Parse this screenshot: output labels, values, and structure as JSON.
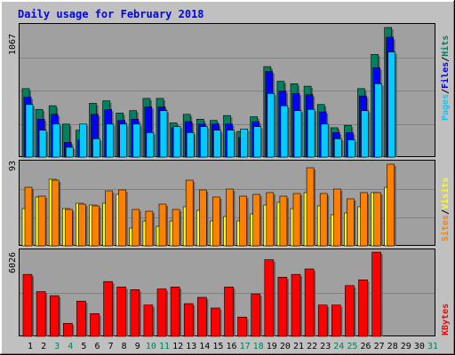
{
  "chart_data": [
    {
      "type": "bar",
      "title": "Daily usage for February 2018",
      "ymax_label": "1067",
      "ylim": [
        0,
        1067
      ],
      "legend": [
        {
          "text": "Pages",
          "color": "#00ccff"
        },
        {
          "text": "Files",
          "color": "#0000ff"
        },
        {
          "text": "Hits",
          "color": "#00805c"
        }
      ],
      "sep": "/",
      "categories": [
        "1",
        "2",
        "3",
        "4",
        "5",
        "6",
        "7",
        "8",
        "9",
        "10",
        "11",
        "12",
        "13",
        "14",
        "15",
        "16",
        "17",
        "18",
        "19",
        "20",
        "21",
        "22",
        "23",
        "24",
        "25",
        "26",
        "27",
        "28",
        "29",
        "30",
        "31"
      ],
      "weekend_days": [
        "3",
        "4",
        "10",
        "11",
        "17",
        "18",
        "24",
        "25",
        "31"
      ],
      "series": [
        {
          "name": "Hits",
          "color": "#00805c",
          "values": [
            560,
            390,
            420,
            270,
            220,
            440,
            460,
            360,
            380,
            480,
            480,
            280,
            350,
            310,
            300,
            340,
            210,
            330,
            740,
            620,
            600,
            580,
            430,
            240,
            260,
            560,
            840,
            1060,
            0,
            0,
            0
          ]
        },
        {
          "name": "Files",
          "color": "#0000ff",
          "values": [
            490,
            310,
            350,
            120,
            140,
            350,
            390,
            300,
            310,
            410,
            410,
            240,
            290,
            270,
            270,
            270,
            160,
            290,
            700,
            540,
            520,
            510,
            370,
            200,
            200,
            500,
            730,
            980,
            0,
            0,
            0
          ]
        },
        {
          "name": "Pages",
          "color": "#00ccff",
          "values": [
            430,
            220,
            270,
            80,
            270,
            150,
            270,
            270,
            270,
            200,
            380,
            250,
            200,
            250,
            220,
            220,
            230,
            250,
            520,
            420,
            380,
            390,
            270,
            150,
            140,
            380,
            600,
            860,
            0,
            0,
            0
          ]
        }
      ]
    },
    {
      "type": "bar",
      "ymax_label": "93",
      "ylim": [
        0,
        93
      ],
      "legend": [
        {
          "text": "Sites",
          "color": "#ff8000"
        },
        {
          "text": "Visits",
          "color": "#ffff00"
        }
      ],
      "sep": "/",
      "series": [
        {
          "name": "Visits",
          "color": "#ffff00",
          "values": [
            42,
            55,
            75,
            42,
            48,
            46,
            48,
            58,
            20,
            28,
            22,
            28,
            44,
            40,
            28,
            33,
            28,
            36,
            46,
            49,
            42,
            60,
            45,
            35,
            37,
            44,
            60,
            66,
            0,
            0,
            0
          ]
        },
        {
          "name": "Sites",
          "color": "#ff8000",
          "values": [
            66,
            56,
            74,
            41,
            47,
            45,
            62,
            63,
            41,
            39,
            47,
            41,
            74,
            63,
            55,
            64,
            56,
            58,
            60,
            56,
            59,
            88,
            59,
            64,
            53,
            60,
            60,
            92,
            0,
            0,
            0
          ]
        }
      ]
    },
    {
      "type": "bar",
      "ymax_label": "6026",
      "ylim": [
        0,
        6026
      ],
      "legend": [
        {
          "text": "KBytes",
          "color": "#ff0000"
        }
      ],
      "series": [
        {
          "name": "KBytes",
          "color": "#ff0000",
          "values": [
            4430,
            3200,
            2910,
            930,
            2520,
            1630,
            3920,
            3530,
            3340,
            2240,
            3390,
            3530,
            2340,
            2790,
            2030,
            3530,
            1380,
            3040,
            5480,
            4230,
            4430,
            4820,
            2240,
            2240,
            3630,
            4040,
            6020,
            0,
            0,
            0,
            0
          ]
        }
      ]
    }
  ]
}
